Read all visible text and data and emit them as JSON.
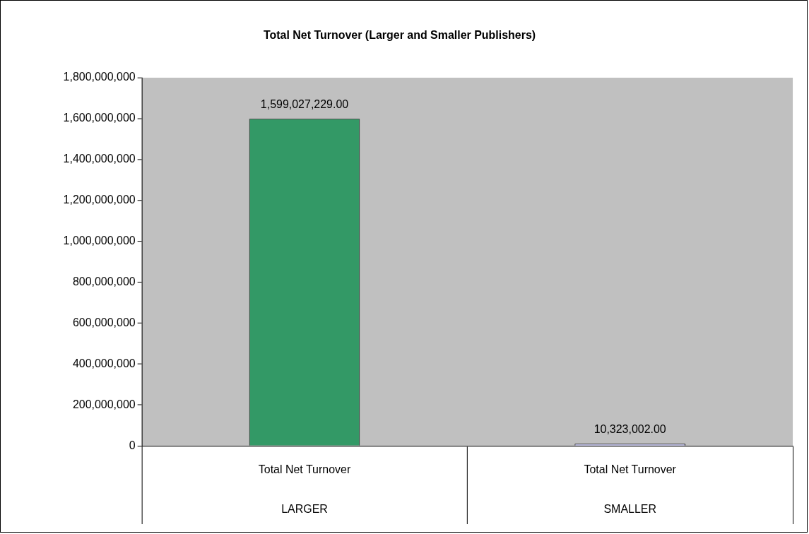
{
  "chart_data": {
    "type": "bar",
    "title": "Total Net Turnover (Larger and Smaller Publishers)",
    "categories": [
      "Total Net Turnover",
      "Total Net Turnover"
    ],
    "values": [
      1599027229,
      10323002
    ],
    "colors": [
      "#339966",
      "#ccccff"
    ],
    "value_labels": [
      "1,599,027,229.00",
      "10,323,002.00"
    ],
    "annotations": [
      "LARGER",
      "SMALLER"
    ],
    "ylim": [
      0,
      1800000000
    ],
    "yticks": [
      0,
      {
        "value": 200000000,
        "label": "200,000,000"
      },
      {
        "value": 400000000,
        "label": "400,000,000"
      },
      {
        "value": 600000000,
        "label": "600,000,000"
      },
      {
        "value": 800000000,
        "label": "800,000,000"
      },
      {
        "value": 1000000000,
        "label": "1,000,000,000"
      },
      {
        "value": 1200000000,
        "label": "1,200,000,000"
      },
      {
        "value": 1400000000,
        "label": "1,400,000,000"
      },
      {
        "value": 1600000000,
        "label": "1,600,000,000"
      },
      {
        "value": 1800000000,
        "label": "1,800,000,000"
      }
    ],
    "grid": false,
    "legend": false
  }
}
